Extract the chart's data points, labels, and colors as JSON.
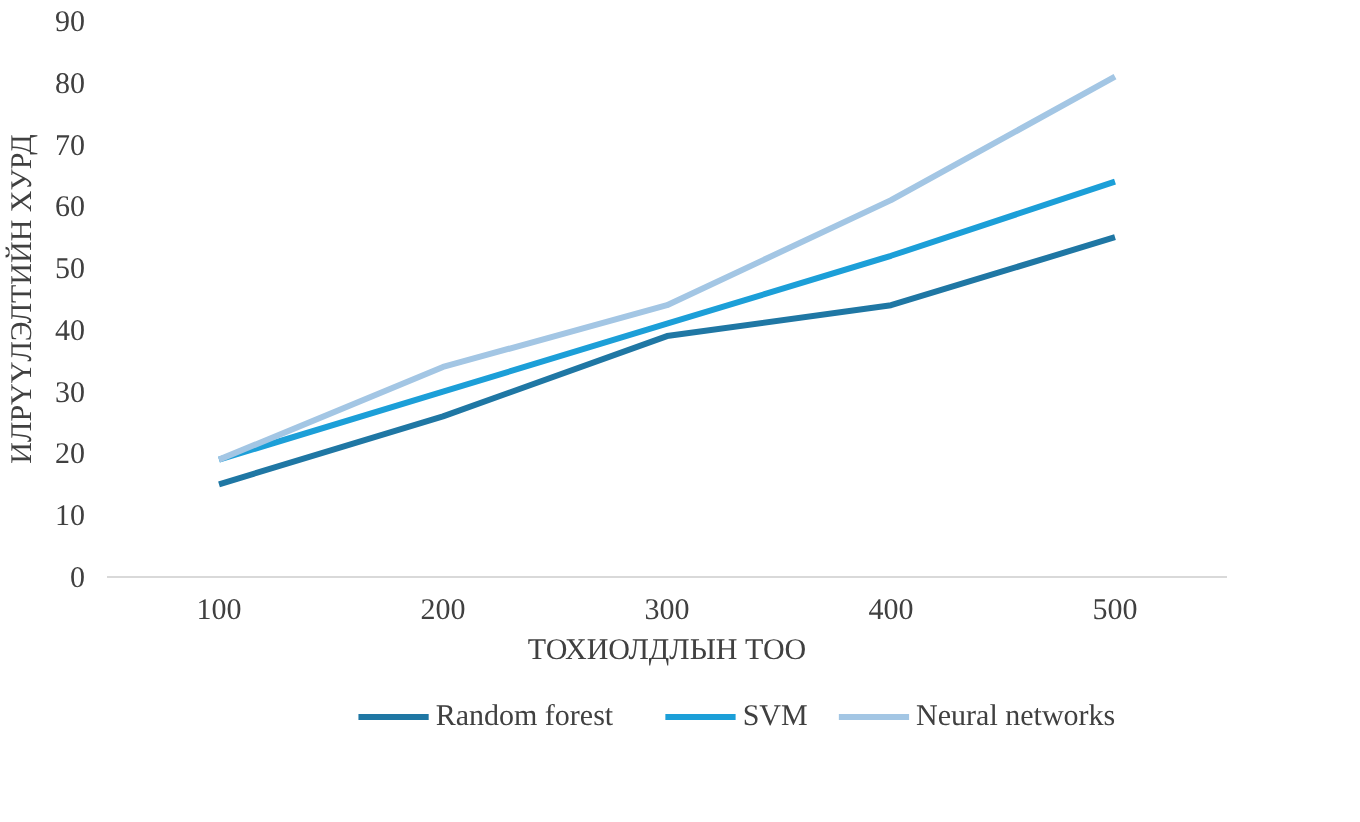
{
  "chart_data": {
    "type": "line",
    "xlabel": "ТОХИОЛДЛЫН ТОО",
    "ylabel": "ИЛРҮҮЛЭЛТИЙН ХУРД",
    "categories": [
      "100",
      "200",
      "300",
      "400",
      "500"
    ],
    "series": [
      {
        "name": "Random forest",
        "color": "#1f77a4",
        "values": [
          15,
          26,
          39,
          44,
          55
        ]
      },
      {
        "name": "SVM",
        "color": "#1c9fd8",
        "values": [
          19,
          30,
          41,
          52,
          64
        ]
      },
      {
        "name": "Neural networks",
        "color": "#a3c6e4",
        "values": [
          19,
          34,
          44,
          61,
          81
        ]
      }
    ],
    "ylim": [
      0,
      90
    ],
    "yticks": [
      0,
      10,
      20,
      30,
      40,
      50,
      60,
      70,
      80,
      90
    ],
    "grid": false,
    "legend": "bottom",
    "marker": "none",
    "line_style": "solid"
  }
}
